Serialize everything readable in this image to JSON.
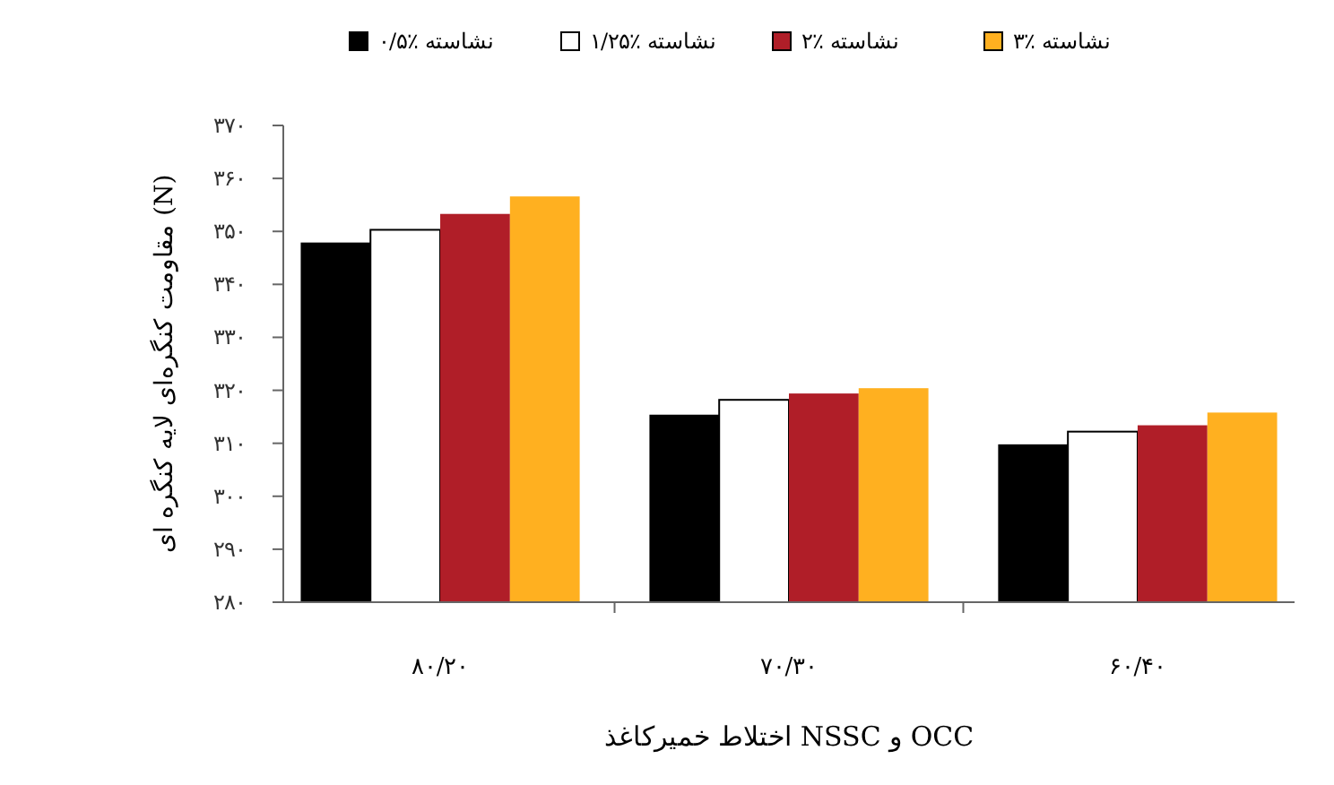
{
  "chart_data": {
    "type": "bar",
    "xlabel": "اختلاط خمیرکاغذ NSSC و OCC",
    "ylabel": "مقاومت کنگره‌ای لایه کنگره ای (N)",
    "categories": [
      "۸۰/۲۰",
      "۷۰/۳۰",
      "۶۰/۴۰"
    ],
    "series": [
      {
        "name": "۰/۵٪ نشاسته",
        "color": "#000000",
        "values": [
          347.9,
          315.4,
          309.8
        ]
      },
      {
        "name": "۱/۲۵٪ نشاسته",
        "color": "#ffffff",
        "values": [
          350.3,
          318.2,
          312.2
        ]
      },
      {
        "name": "۲٪ نشاسته",
        "color": "#b01e28",
        "values": [
          353.3,
          319.4,
          313.4
        ]
      },
      {
        "name": "۳٪ نشاسته",
        "color": "#ffb020",
        "values": [
          356.6,
          320.4,
          315.8
        ]
      }
    ],
    "ylim": [
      280,
      370
    ],
    "yticks": [
      {
        "value": 280,
        "label": "۲۸۰"
      },
      {
        "value": 290,
        "label": "۲۹۰"
      },
      {
        "value": 300,
        "label": "۳۰۰"
      },
      {
        "value": 310,
        "label": "۳۱۰"
      },
      {
        "value": 320,
        "label": "۳۲۰"
      },
      {
        "value": 330,
        "label": "۳۳۰"
      },
      {
        "value": 340,
        "label": "۳۴۰"
      },
      {
        "value": 350,
        "label": "۳۵۰"
      },
      {
        "value": 360,
        "label": "۳۶۰"
      },
      {
        "value": 370,
        "label": "۳۷۰"
      }
    ],
    "legend": "top",
    "grid": false
  }
}
